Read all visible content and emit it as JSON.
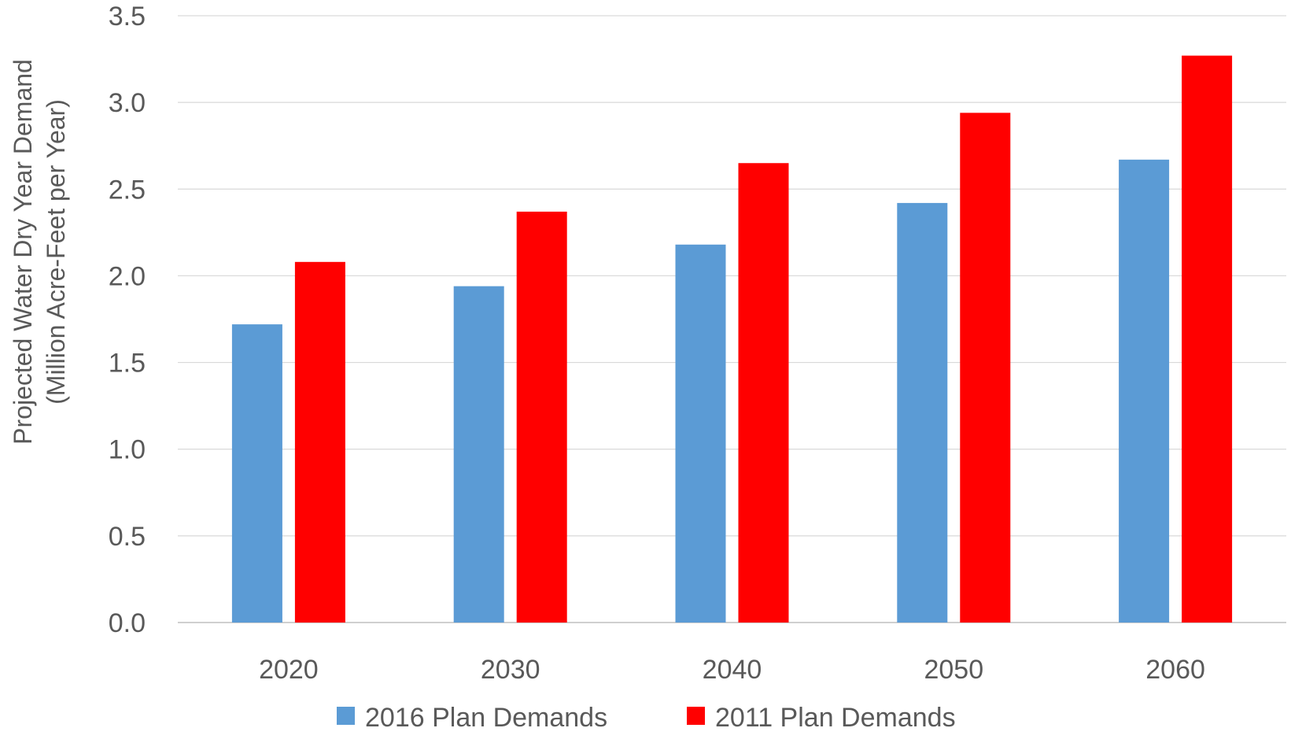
{
  "chart_data": {
    "type": "bar",
    "title": "",
    "xlabel": "",
    "ylabel": [
      "Projected Water Dry Year Demand",
      "(Million Acre-Feet per Year)"
    ],
    "categories": [
      "2020",
      "2030",
      "2040",
      "2050",
      "2060"
    ],
    "series": [
      {
        "name": "2016 Plan Demands",
        "color": "#5B9BD5",
        "values": [
          1.72,
          1.94,
          2.18,
          2.42,
          2.67
        ]
      },
      {
        "name": "2011 Plan Demands",
        "color": "#FF0000",
        "values": [
          2.08,
          2.37,
          2.65,
          2.94,
          3.27
        ]
      }
    ],
    "ylim": [
      0,
      3.5
    ],
    "yticks": [
      "0.0",
      "0.5",
      "1.0",
      "1.5",
      "2.0",
      "2.5",
      "3.0",
      "3.5"
    ],
    "grid": true,
    "legend_position": "bottom"
  }
}
